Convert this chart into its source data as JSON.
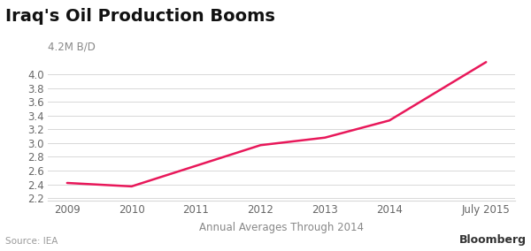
{
  "title": "Iraq's Oil Production Booms",
  "xlabel": "Annual Averages Through 2014",
  "ylabel_top": "4.2M B/D",
  "source": "Source: IEA",
  "bloomberg": "Bloomberg",
  "x_values": [
    2009,
    2010,
    2011,
    2012,
    2013,
    2014,
    2015.5
  ],
  "y_values": [
    2.42,
    2.37,
    2.67,
    2.97,
    3.08,
    3.33,
    4.18
  ],
  "x_tick_labels": [
    "2009",
    "2010",
    "2011",
    "2012",
    "2013",
    "2014",
    "July 2015"
  ],
  "x_tick_positions": [
    2009,
    2010,
    2011,
    2012,
    2013,
    2014,
    2015.5
  ],
  "y_ticks": [
    2.2,
    2.4,
    2.6,
    2.8,
    3.0,
    3.2,
    3.4,
    3.6,
    3.8,
    4.0
  ],
  "ylim": [
    2.16,
    4.28
  ],
  "xlim": [
    2008.7,
    2015.95
  ],
  "line_color": "#e8185a",
  "line_width": 1.8,
  "bg_color": "#ffffff",
  "grid_color": "#d8d8d8",
  "title_fontsize": 14,
  "axis_label_fontsize": 8.5,
  "tick_fontsize": 8.5,
  "source_fontsize": 7.5
}
